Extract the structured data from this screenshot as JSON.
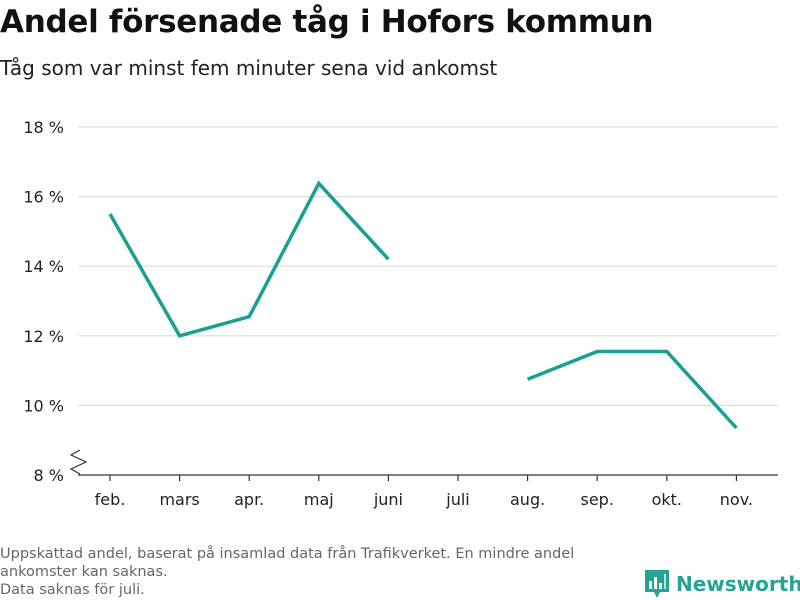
{
  "header": {
    "title": "Andel försenade tåg i Hofors kommun",
    "subtitle": "Tåg som var minst fem minuter sena vid ankomst"
  },
  "footer": {
    "note_lines": [
      "Uppskattad andel, baserat på insamlad data från Trafikverket. En mindre andel",
      "ankomster kan saknas.",
      "Data saknas för juli."
    ],
    "brand": "Newsworthy",
    "brand_icon": "bar-chart-logo-icon"
  },
  "colors": {
    "line": "#18a095",
    "grid": "#dddddd",
    "axis": "#333333",
    "brand": "#26a394"
  },
  "chart_data": {
    "type": "line",
    "categories": [
      "feb.",
      "mars",
      "apr.",
      "maj",
      "juni",
      "juli",
      "aug.",
      "sep.",
      "okt.",
      "nov."
    ],
    "series": [
      {
        "values": [
          15.5,
          12.0,
          12.55,
          16.38,
          14.2,
          null,
          10.75,
          11.55,
          11.55,
          9.35
        ]
      }
    ],
    "ylim": [
      8,
      18
    ],
    "yticks": [
      8,
      10,
      12,
      14,
      16,
      18
    ],
    "ytick_labels": [
      "8 %",
      "10 %",
      "12 %",
      "14 %",
      "16 %",
      "18 %"
    ],
    "grid": true,
    "axis_break": true,
    "legend": "none"
  }
}
